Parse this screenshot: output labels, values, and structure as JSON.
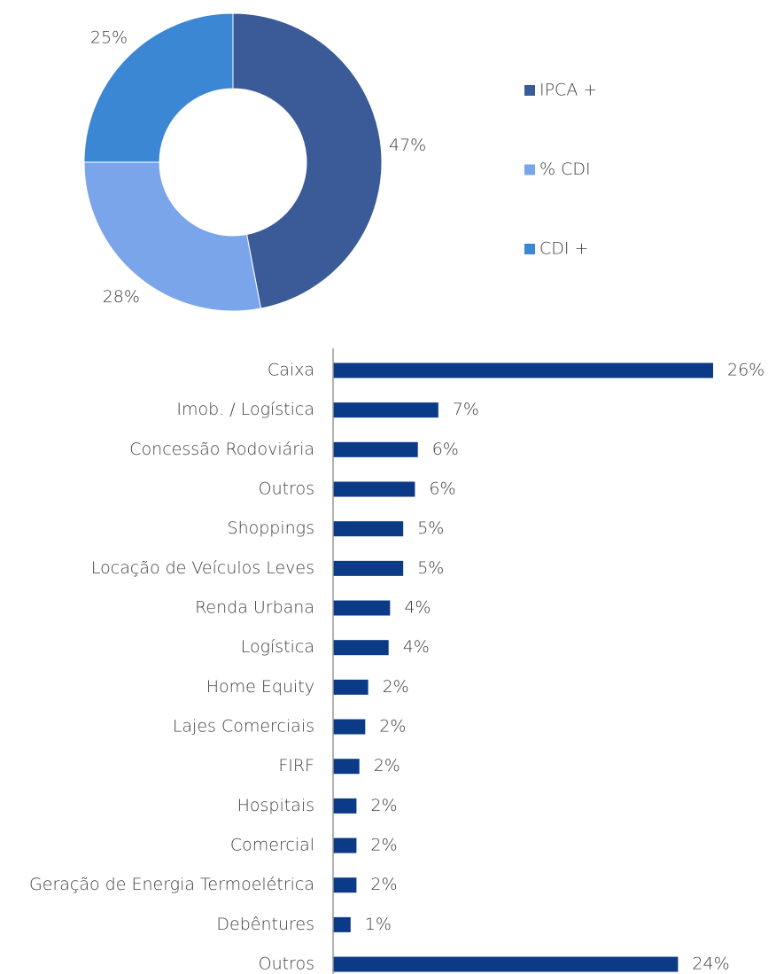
{
  "chart_data": [
    {
      "type": "donut",
      "categories": [
        "IPCA +",
        "% CDI",
        "CDI +"
      ],
      "values": [
        47,
        28,
        25
      ],
      "value_labels": [
        "47%",
        "28%",
        "25%"
      ],
      "colors": [
        "#3a5a98",
        "#7ba5ea",
        "#3b87d4"
      ],
      "legend": "right"
    },
    {
      "type": "hbar",
      "categories": [
        "Caixa",
        "Imob. / Logística",
        "Concessão Rodoviária",
        "Outros",
        "Shoppings",
        "Locação de Veículos Leves",
        "Renda Urbana",
        "Logística",
        "Home Equity",
        "Lajes Comerciais",
        "FIRF",
        "Hospitais",
        "Comercial",
        "Geração de Energia Termoelétrica",
        "Debêntures",
        "Outros"
      ],
      "values": [
        26,
        7.2,
        5.8,
        5.6,
        4.8,
        4.8,
        3.9,
        3.8,
        2.4,
        2.2,
        1.8,
        1.6,
        1.6,
        1.6,
        1.2,
        23.6
      ],
      "value_labels": [
        "26%",
        "7%",
        "6%",
        "6%",
        "5%",
        "5%",
        "4%",
        "4%",
        "2%",
        "2%",
        "2%",
        "2%",
        "2%",
        "2%",
        "1%",
        "24%"
      ],
      "color": "#0b3a86",
      "xlim": [
        0,
        27
      ]
    }
  ]
}
